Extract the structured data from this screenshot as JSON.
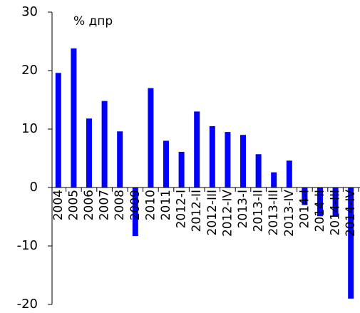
{
  "chart_data": {
    "type": "bar",
    "annotation": "% дпр",
    "categories": [
      "2004",
      "2005",
      "2006",
      "2007",
      "2008",
      "2009",
      "2010",
      "2011",
      "2012-I",
      "2012-II",
      "2012-III",
      "2012-IV",
      "2013-I",
      "2013-II",
      "2013-III",
      "2013-IV",
      "2014-I",
      "2014-II",
      "2014-III",
      "2014-IV"
    ],
    "values": [
      19.6,
      23.8,
      11.8,
      14.8,
      9.6,
      -8.3,
      17.0,
      8.0,
      6.1,
      13.0,
      10.5,
      9.5,
      9.0,
      5.7,
      2.6,
      4.6,
      -3.0,
      -4.9,
      -5.0,
      -19.0
    ],
    "color": "#0000ff",
    "ylim": [
      -20,
      30
    ],
    "yticks": [
      -20,
      -10,
      0,
      10,
      20,
      30
    ],
    "grid": false
  }
}
